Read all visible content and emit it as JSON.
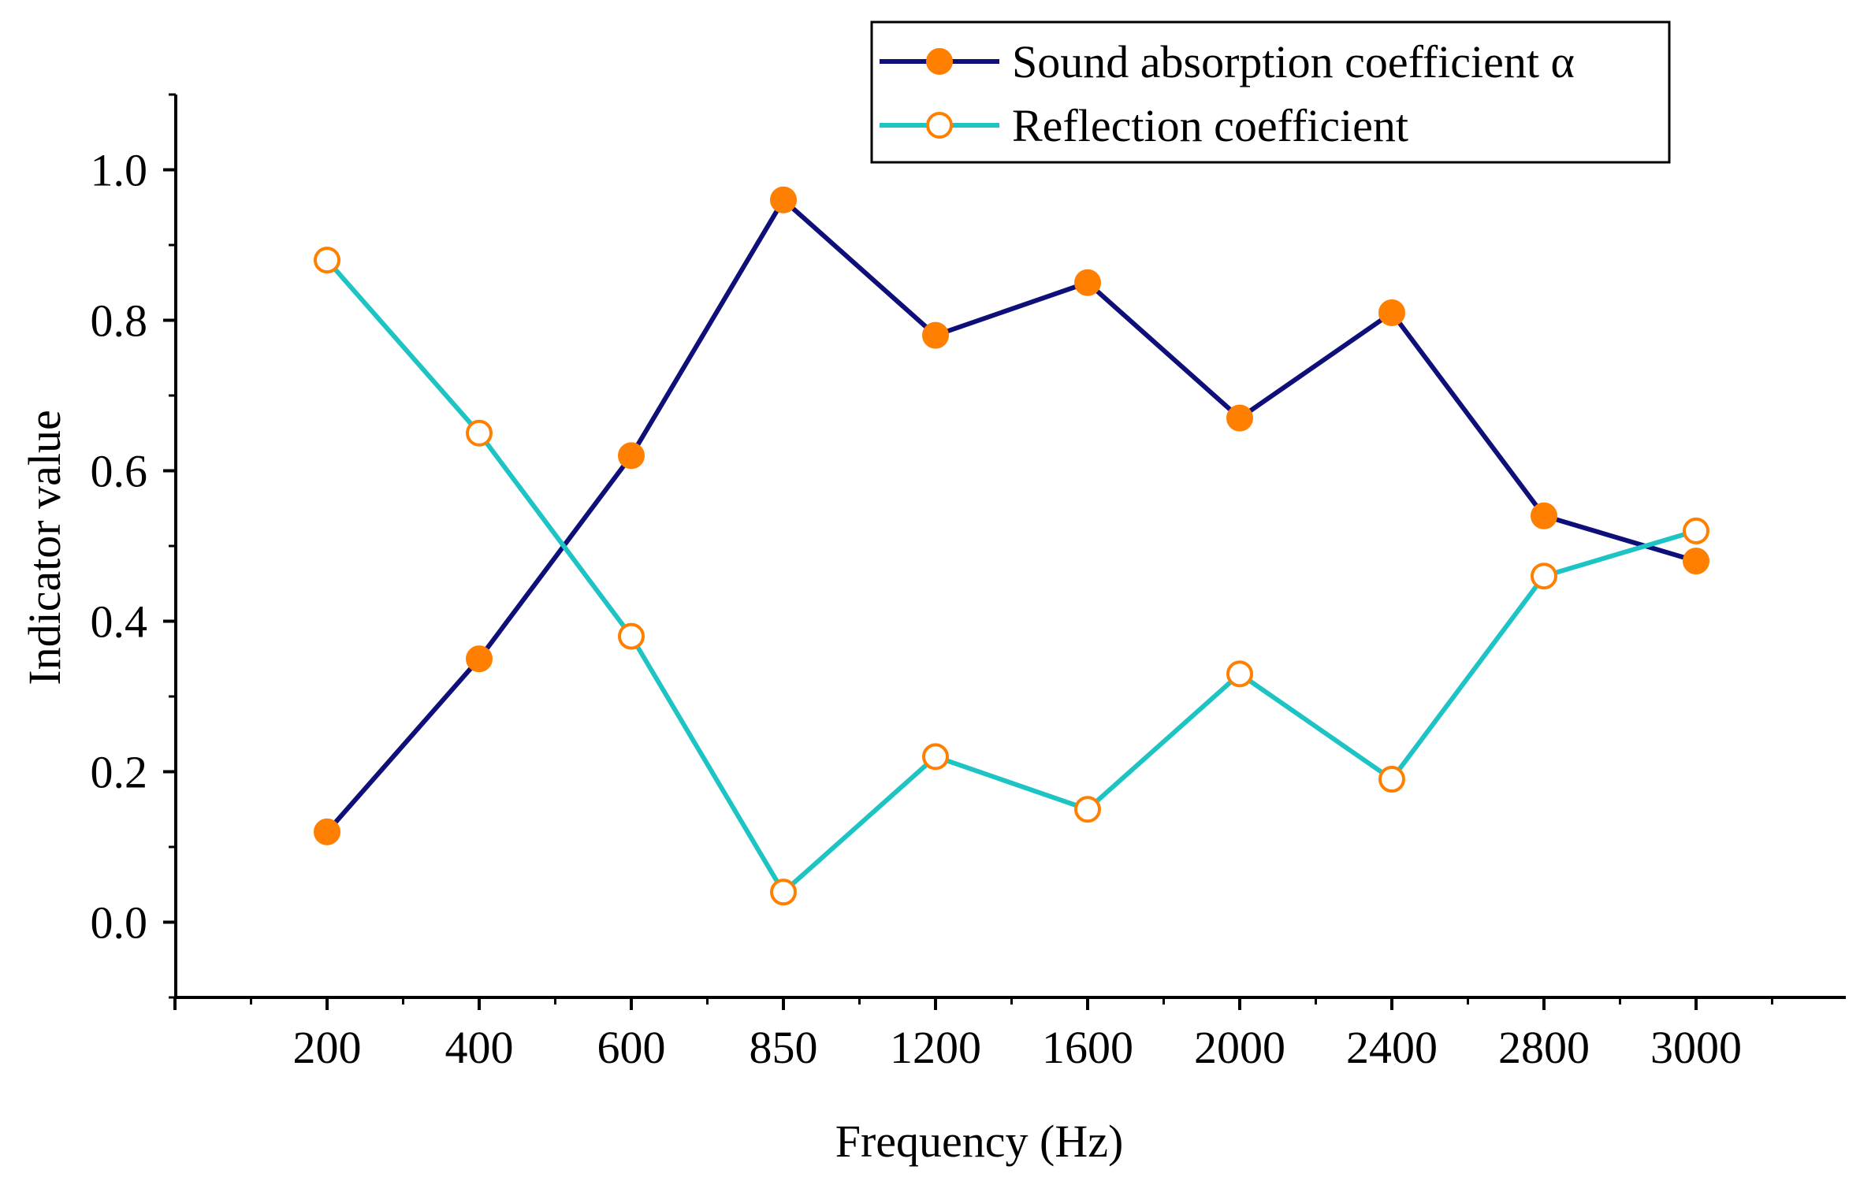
{
  "chart_data": {
    "type": "line",
    "title": "",
    "xlabel": "Frequency (Hz)",
    "ylabel": "Indicator value",
    "categories": [
      "200",
      "400",
      "600",
      "850",
      "1200",
      "1600",
      "2000",
      "2400",
      "2800",
      "3000"
    ],
    "ylim": [
      -0.1,
      1.1
    ],
    "yticks": [
      "0.0",
      "0.2",
      "0.4",
      "0.6",
      "0.8",
      "1.0"
    ],
    "ytick_values": [
      0.0,
      0.2,
      0.4,
      0.6,
      0.8,
      1.0
    ],
    "grid": false,
    "legend_position": "top-right",
    "series": [
      {
        "name": "Sound absorption coefficient α",
        "values": [
          0.12,
          0.35,
          0.62,
          0.96,
          0.78,
          0.85,
          0.67,
          0.81,
          0.54,
          0.48
        ],
        "line_color": "#0f0f7a",
        "marker": "filled-circle",
        "marker_color": "#ff8000"
      },
      {
        "name": "Reflection coefficient",
        "values": [
          0.88,
          0.65,
          0.38,
          0.04,
          0.22,
          0.15,
          0.33,
          0.19,
          0.46,
          0.52
        ],
        "line_color": "#1ec4c4",
        "marker": "open-circle",
        "marker_color": "#ff8000"
      }
    ]
  }
}
